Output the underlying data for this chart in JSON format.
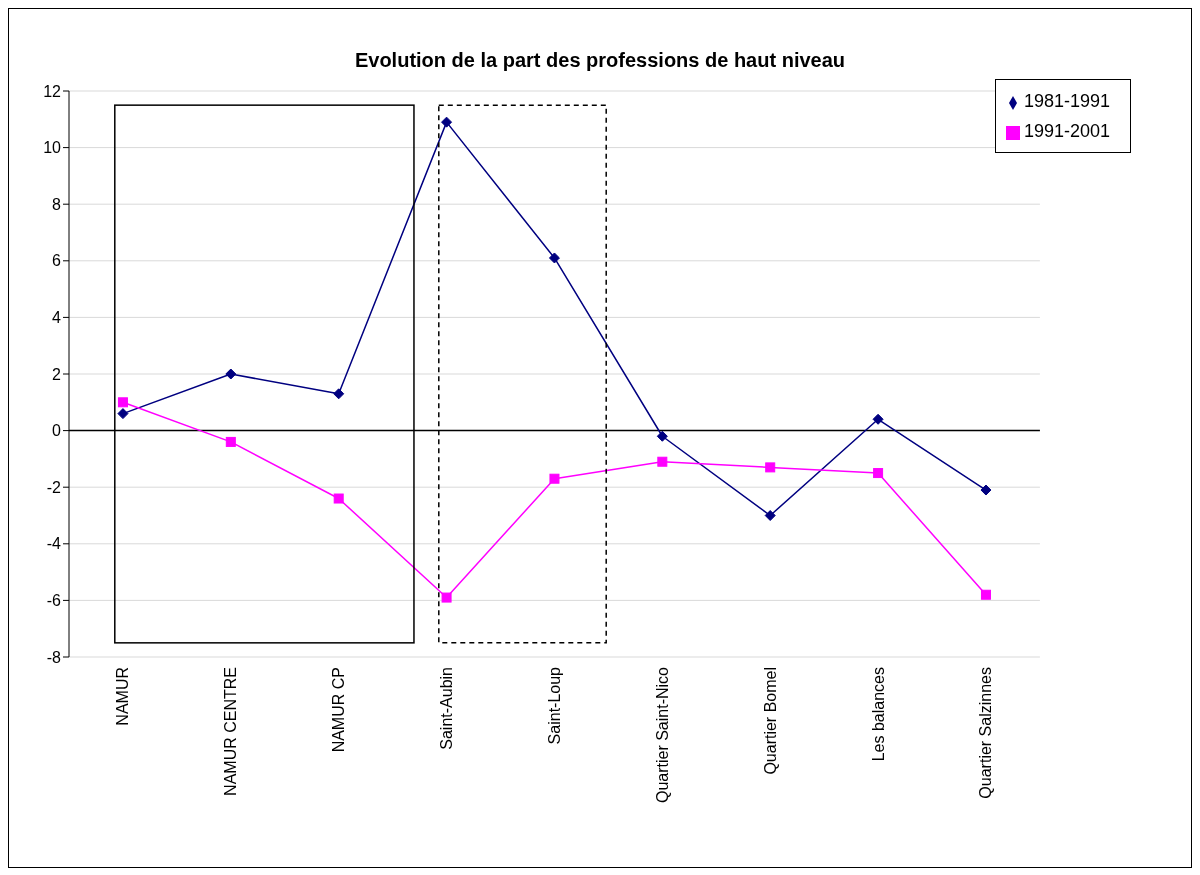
{
  "chart_data": {
    "type": "line",
    "title": "Evolution de la part des professions de haut niveau",
    "categories": [
      "NAMUR",
      "NAMUR CENTRE",
      "NAMUR CP",
      "Saint-Aubin",
      "Saint-Loup",
      "Quartier Saint-Nico",
      "Quartier Bomel",
      "Les balances",
      "Quartier Salzinnes"
    ],
    "series": [
      {
        "name": "1981-1991",
        "color": "#000080",
        "marker": "diamond",
        "values": [
          0.6,
          2.0,
          1.3,
          10.9,
          6.1,
          -0.2,
          -3.0,
          0.4,
          -2.1
        ]
      },
      {
        "name": "1991-2001",
        "color": "#ff00ff",
        "marker": "square",
        "values": [
          1.0,
          -0.4,
          -2.4,
          -5.9,
          -1.7,
          -1.1,
          -1.3,
          -1.5,
          -5.8
        ]
      }
    ],
    "ylim": [
      -8,
      12
    ],
    "yticks": [
      -8,
      -6,
      -4,
      -2,
      0,
      2,
      4,
      6,
      8,
      10,
      12
    ],
    "grid": "y",
    "legend": "top right"
  }
}
